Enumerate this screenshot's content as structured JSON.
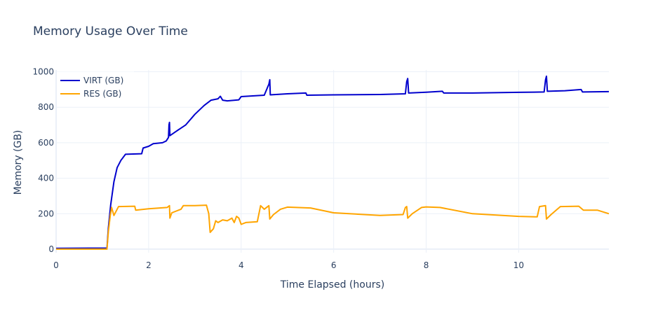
{
  "chart_data": {
    "type": "line",
    "title": "Memory Usage Over Time",
    "xlabel": "Time Elapsed (hours)",
    "ylabel": "Memory (GB)",
    "xlim": [
      0,
      11.95
    ],
    "ylim": [
      -20,
      1010
    ],
    "x_ticks": [
      0,
      2,
      4,
      6,
      8,
      10
    ],
    "y_ticks": [
      0,
      200,
      400,
      600,
      800,
      1000
    ],
    "grid": true,
    "legend_position": "top-left",
    "series": [
      {
        "name": "VIRT (GB)",
        "color": "#0000cd",
        "points": [
          [
            0,
            5
          ],
          [
            1.1,
            6
          ],
          [
            1.13,
            120
          ],
          [
            1.18,
            250
          ],
          [
            1.25,
            380
          ],
          [
            1.32,
            460
          ],
          [
            1.4,
            500
          ],
          [
            1.5,
            535
          ],
          [
            1.85,
            538
          ],
          [
            1.88,
            570
          ],
          [
            2.0,
            580
          ],
          [
            2.1,
            595
          ],
          [
            2.3,
            600
          ],
          [
            2.38,
            610
          ],
          [
            2.43,
            630
          ],
          [
            2.44,
            700
          ],
          [
            2.45,
            715
          ],
          [
            2.46,
            640
          ],
          [
            2.6,
            665
          ],
          [
            2.8,
            700
          ],
          [
            3.0,
            760
          ],
          [
            3.2,
            810
          ],
          [
            3.35,
            840
          ],
          [
            3.5,
            848
          ],
          [
            3.55,
            862
          ],
          [
            3.6,
            840
          ],
          [
            3.7,
            836
          ],
          [
            3.95,
            842
          ],
          [
            4.0,
            860
          ],
          [
            4.5,
            868
          ],
          [
            4.6,
            930
          ],
          [
            4.62,
            955
          ],
          [
            4.63,
            870
          ],
          [
            5.0,
            876
          ],
          [
            5.4,
            880
          ],
          [
            5.42,
            868
          ],
          [
            6.0,
            870
          ],
          [
            7.0,
            872
          ],
          [
            7.55,
            876
          ],
          [
            7.58,
            945
          ],
          [
            7.6,
            962
          ],
          [
            7.62,
            880
          ],
          [
            8.0,
            885
          ],
          [
            8.35,
            890
          ],
          [
            8.38,
            880
          ],
          [
            9.0,
            880
          ],
          [
            10.0,
            884
          ],
          [
            10.55,
            886
          ],
          [
            10.58,
            955
          ],
          [
            10.6,
            975
          ],
          [
            10.62,
            890
          ],
          [
            11.0,
            893
          ],
          [
            11.35,
            900
          ],
          [
            11.38,
            886
          ],
          [
            11.95,
            888
          ]
        ]
      },
      {
        "name": "RES (GB)",
        "color": "#ffa500",
        "points": [
          [
            0,
            0
          ],
          [
            1.1,
            0
          ],
          [
            1.13,
            100
          ],
          [
            1.17,
            190
          ],
          [
            1.2,
            235
          ],
          [
            1.25,
            190
          ],
          [
            1.35,
            240
          ],
          [
            1.7,
            242
          ],
          [
            1.72,
            220
          ],
          [
            2.0,
            228
          ],
          [
            2.4,
            235
          ],
          [
            2.45,
            245
          ],
          [
            2.46,
            175
          ],
          [
            2.5,
            205
          ],
          [
            2.7,
            225
          ],
          [
            2.75,
            245
          ],
          [
            3.0,
            245
          ],
          [
            3.25,
            248
          ],
          [
            3.3,
            200
          ],
          [
            3.33,
            95
          ],
          [
            3.4,
            115
          ],
          [
            3.45,
            160
          ],
          [
            3.5,
            150
          ],
          [
            3.6,
            165
          ],
          [
            3.7,
            160
          ],
          [
            3.8,
            175
          ],
          [
            3.85,
            150
          ],
          [
            3.9,
            185
          ],
          [
            3.95,
            175
          ],
          [
            4.0,
            140
          ],
          [
            4.1,
            150
          ],
          [
            4.35,
            155
          ],
          [
            4.42,
            245
          ],
          [
            4.5,
            225
          ],
          [
            4.6,
            245
          ],
          [
            4.62,
            170
          ],
          [
            4.7,
            195
          ],
          [
            4.85,
            225
          ],
          [
            5.0,
            237
          ],
          [
            5.5,
            232
          ],
          [
            6.0,
            205
          ],
          [
            7.0,
            190
          ],
          [
            7.5,
            195
          ],
          [
            7.55,
            235
          ],
          [
            7.58,
            240
          ],
          [
            7.6,
            175
          ],
          [
            7.7,
            200
          ],
          [
            7.9,
            235
          ],
          [
            8.0,
            238
          ],
          [
            8.3,
            235
          ],
          [
            9.0,
            200
          ],
          [
            10.0,
            185
          ],
          [
            10.4,
            182
          ],
          [
            10.45,
            240
          ],
          [
            10.58,
            245
          ],
          [
            10.6,
            170
          ],
          [
            10.7,
            195
          ],
          [
            10.9,
            240
          ],
          [
            11.3,
            242
          ],
          [
            11.4,
            220
          ],
          [
            11.7,
            220
          ],
          [
            11.95,
            200
          ]
        ]
      }
    ]
  }
}
